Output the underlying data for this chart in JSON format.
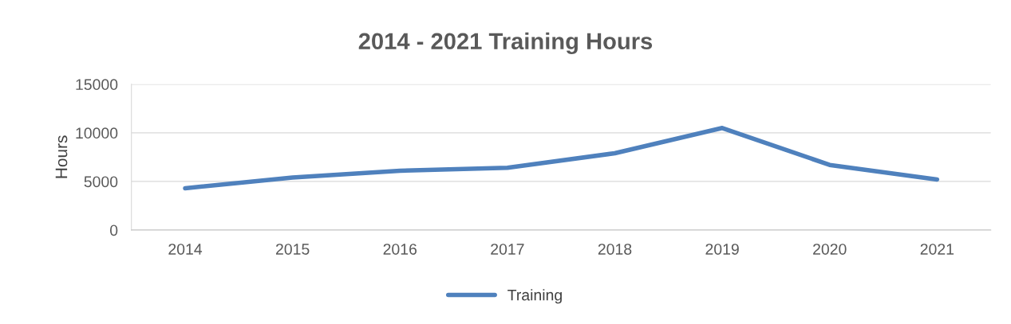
{
  "chart_data": {
    "type": "line",
    "title": "2014 - 2021 Training Hours",
    "ylabel": "Hours",
    "categories": [
      "2014",
      "2015",
      "2016",
      "2017",
      "2018",
      "2019",
      "2020",
      "2021"
    ],
    "series": [
      {
        "name": "Training",
        "color": "#4f81bd",
        "values": [
          4300,
          5400,
          6100,
          6400,
          7900,
          10500,
          6700,
          5200
        ]
      }
    ],
    "ylim": [
      0,
      15000
    ],
    "yticks": [
      0,
      5000,
      10000,
      15000
    ],
    "grid": "y",
    "legend": "bottom",
    "marker": "none",
    "line_style": "solid"
  }
}
